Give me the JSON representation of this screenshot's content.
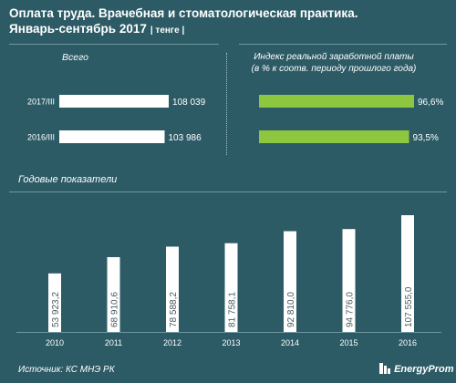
{
  "header": {
    "title_line1": "Оплата труда. Врачебная и стоматологическая практика.",
    "title_line2": "Январь-сентябрь 2017",
    "unit": "| тенге |"
  },
  "colors": {
    "background": "#2c5b66",
    "bar_white": "#ffffff",
    "bar_green": "#8dc63f",
    "text": "#ffffff"
  },
  "chart_data": [
    {
      "type": "bar",
      "orientation": "horizontal",
      "title": "Всего",
      "categories": [
        "2017/III",
        "2016/III"
      ],
      "values": [
        108039,
        103986
      ],
      "value_labels": [
        "108 039",
        "103 986"
      ],
      "xlim": [
        0,
        108039
      ]
    },
    {
      "type": "bar",
      "orientation": "horizontal",
      "title": "Индекс реальной заработной платы",
      "subtitle": "(в % к соотв. периоду прошлого года)",
      "categories": [
        "2017/III",
        "2016/III"
      ],
      "values": [
        96.6,
        93.5
      ],
      "value_labels": [
        "96,6%",
        "93,5%"
      ],
      "xlim": [
        0,
        96.6
      ]
    },
    {
      "type": "bar",
      "title": "Годовые показатели",
      "categories": [
        "2010",
        "2011",
        "2012",
        "2013",
        "2014",
        "2015",
        "2016"
      ],
      "values": [
        53923.2,
        68910.6,
        78588.2,
        81758.1,
        92810.0,
        94776.0,
        107555.0
      ],
      "value_labels": [
        "53 923,2",
        "68 910,6",
        "78 588,2",
        "81 758,1",
        "92 810,0",
        "94 776,0",
        "107 555,0"
      ],
      "ylim": [
        0,
        107555
      ]
    }
  ],
  "footer": {
    "source": "Источник: КС МНЭ РК",
    "brand": "EnergyProm"
  }
}
